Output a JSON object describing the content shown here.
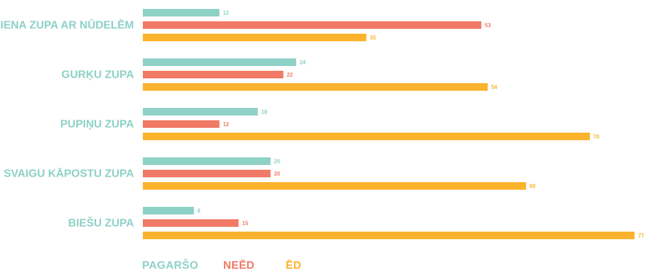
{
  "chart_data": {
    "type": "bar",
    "orientation": "horizontal",
    "categories": [
      "PIENA ZUPA AR NŪDELĒM",
      "GURĶU ZUPA",
      "PUPIŅU ZUPA",
      "SVAIGU KĀPOSTU ZUPA",
      "BIEŠU ZUPA"
    ],
    "series": [
      {
        "name": "PAGARŠO",
        "color": "#8ed1c6",
        "values": [
          12,
          24,
          18,
          20,
          8
        ]
      },
      {
        "name": "NEĒD",
        "color": "#f07a66",
        "values": [
          53,
          22,
          12,
          20,
          15
        ]
      },
      {
        "name": "ĒD",
        "color": "#fbb32e",
        "values": [
          35,
          54,
          70,
          60,
          77
        ]
      }
    ],
    "category_label_color": "#8ed1c6",
    "xlim": [
      0,
      80
    ],
    "grid": false,
    "legend_position": "bottom-left"
  }
}
